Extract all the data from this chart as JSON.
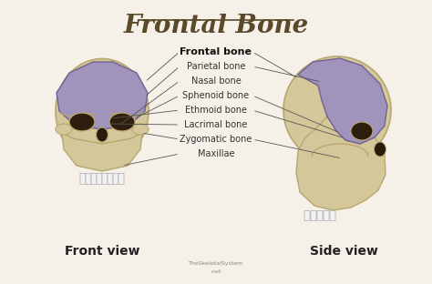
{
  "title": "Frontal Bone",
  "bg_color": "#f5f0e8",
  "title_color": "#5a4a2a",
  "title_fontsize": 20,
  "frontal_bone_color": "#9b8fc0",
  "skull_color": "#d4c89a",
  "skull_dark": "#b8a870",
  "label_color": "#333333",
  "front_view_label": "Front view",
  "side_view_label": "Side view",
  "watermark_line1": "TheSkeletalSystem",
  "watermark_line2": ".net",
  "labels": [
    "Frontal bone",
    "Parietal bone",
    "Nasal bone",
    "Sphenoid bone",
    "Ethmoid bone",
    "Lacrimal bone",
    "Zygomatic bone",
    "Maxillae"
  ],
  "label_fontsize": 7,
  "view_label_fontsize": 10
}
